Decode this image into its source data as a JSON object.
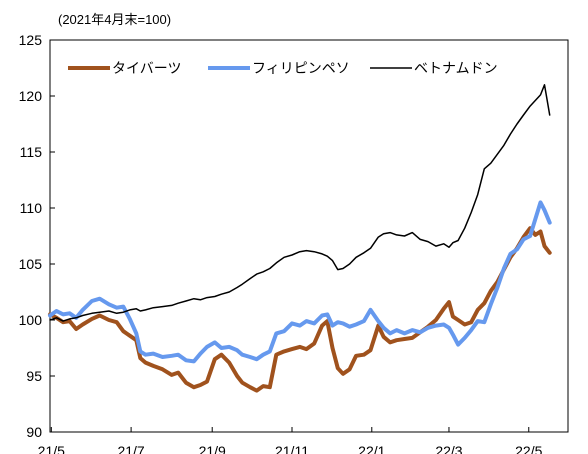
{
  "chart_data": {
    "type": "line",
    "note": "(2021年4月末=100)",
    "ylim": [
      90,
      125
    ],
    "yticks": [
      90,
      95,
      100,
      105,
      110,
      115,
      120,
      125
    ],
    "xticks": [
      "21/5",
      "21/7",
      "21/9",
      "21/11",
      "22/1",
      "22/3",
      "22/5"
    ],
    "x_start": "2021-04-30",
    "x_end": "2022-05-31",
    "legend_position": "top",
    "grid": false,
    "series": [
      {
        "name": "タイバーツ",
        "color": "#a0521d",
        "width": 4,
        "points": [
          [
            "2021-04-30",
            100.5
          ],
          [
            "2021-05-05",
            100.2
          ],
          [
            "2021-05-10",
            99.8
          ],
          [
            "2021-05-15",
            99.9
          ],
          [
            "2021-05-20",
            99.2
          ],
          [
            "2021-05-25",
            99.6
          ],
          [
            "2021-06-01",
            100.1
          ],
          [
            "2021-06-07",
            100.4
          ],
          [
            "2021-06-14",
            100.0
          ],
          [
            "2021-06-20",
            99.8
          ],
          [
            "2021-06-25",
            99.0
          ],
          [
            "2021-06-30",
            98.6
          ],
          [
            "2021-07-05",
            98.2
          ],
          [
            "2021-07-08",
            96.6
          ],
          [
            "2021-07-12",
            96.2
          ],
          [
            "2021-07-18",
            95.9
          ],
          [
            "2021-07-25",
            95.6
          ],
          [
            "2021-08-01",
            95.1
          ],
          [
            "2021-08-06",
            95.3
          ],
          [
            "2021-08-12",
            94.4
          ],
          [
            "2021-08-18",
            94.0
          ],
          [
            "2021-08-23",
            94.2
          ],
          [
            "2021-08-28",
            94.5
          ],
          [
            "2021-09-03",
            96.5
          ],
          [
            "2021-09-08",
            96.9
          ],
          [
            "2021-09-14",
            96.2
          ],
          [
            "2021-09-20",
            95.0
          ],
          [
            "2021-09-24",
            94.4
          ],
          [
            "2021-09-30",
            94.0
          ],
          [
            "2021-10-05",
            93.7
          ],
          [
            "2021-10-10",
            94.1
          ],
          [
            "2021-10-15",
            94.0
          ],
          [
            "2021-10-20",
            96.9
          ],
          [
            "2021-10-26",
            97.2
          ],
          [
            "2021-11-01",
            97.4
          ],
          [
            "2021-11-07",
            97.6
          ],
          [
            "2021-11-12",
            97.4
          ],
          [
            "2021-11-18",
            97.9
          ],
          [
            "2021-11-24",
            99.5
          ],
          [
            "2021-11-28",
            99.9
          ],
          [
            "2021-12-02",
            97.5
          ],
          [
            "2021-12-06",
            95.7
          ],
          [
            "2021-12-10",
            95.2
          ],
          [
            "2021-12-15",
            95.6
          ],
          [
            "2021-12-20",
            96.8
          ],
          [
            "2021-12-26",
            96.9
          ],
          [
            "2021-12-31",
            97.3
          ],
          [
            "2022-01-06",
            99.5
          ],
          [
            "2022-01-10",
            98.5
          ],
          [
            "2022-01-15",
            98.0
          ],
          [
            "2022-01-20",
            98.2
          ],
          [
            "2022-01-26",
            98.3
          ],
          [
            "2022-02-01",
            98.4
          ],
          [
            "2022-02-07",
            98.9
          ],
          [
            "2022-02-13",
            99.4
          ],
          [
            "2022-02-19",
            100.0
          ],
          [
            "2022-02-25",
            101.0
          ],
          [
            "2022-03-01",
            101.6
          ],
          [
            "2022-03-04",
            100.3
          ],
          [
            "2022-03-08",
            100.0
          ],
          [
            "2022-03-13",
            99.6
          ],
          [
            "2022-03-18",
            99.8
          ],
          [
            "2022-03-23",
            100.9
          ],
          [
            "2022-03-28",
            101.5
          ],
          [
            "2022-04-02",
            102.6
          ],
          [
            "2022-04-07",
            103.4
          ],
          [
            "2022-04-12",
            104.5
          ],
          [
            "2022-04-17",
            105.6
          ],
          [
            "2022-04-22",
            106.4
          ],
          [
            "2022-04-27",
            107.4
          ],
          [
            "2022-05-02",
            108.2
          ],
          [
            "2022-05-06",
            107.6
          ],
          [
            "2022-05-10",
            107.9
          ],
          [
            "2022-05-13",
            106.6
          ],
          [
            "2022-05-17",
            106.0
          ]
        ]
      },
      {
        "name": "フィリピンペソ",
        "color": "#6699ee",
        "width": 4,
        "points": [
          [
            "2021-04-30",
            100.4
          ],
          [
            "2021-05-05",
            100.8
          ],
          [
            "2021-05-10",
            100.5
          ],
          [
            "2021-05-15",
            100.6
          ],
          [
            "2021-05-20",
            100.2
          ],
          [
            "2021-05-25",
            100.9
          ],
          [
            "2021-06-01",
            101.7
          ],
          [
            "2021-06-07",
            101.9
          ],
          [
            "2021-06-14",
            101.4
          ],
          [
            "2021-06-20",
            101.1
          ],
          [
            "2021-06-25",
            101.2
          ],
          [
            "2021-06-30",
            100.1
          ],
          [
            "2021-07-05",
            98.8
          ],
          [
            "2021-07-08",
            97.2
          ],
          [
            "2021-07-12",
            96.9
          ],
          [
            "2021-07-18",
            97.0
          ],
          [
            "2021-07-25",
            96.7
          ],
          [
            "2021-08-01",
            96.8
          ],
          [
            "2021-08-06",
            96.9
          ],
          [
            "2021-08-12",
            96.4
          ],
          [
            "2021-08-18",
            96.3
          ],
          [
            "2021-08-23",
            97.0
          ],
          [
            "2021-08-28",
            97.6
          ],
          [
            "2021-09-03",
            98.0
          ],
          [
            "2021-09-08",
            97.5
          ],
          [
            "2021-09-14",
            97.6
          ],
          [
            "2021-09-20",
            97.3
          ],
          [
            "2021-09-24",
            96.9
          ],
          [
            "2021-09-30",
            96.7
          ],
          [
            "2021-10-05",
            96.5
          ],
          [
            "2021-10-10",
            96.9
          ],
          [
            "2021-10-15",
            97.2
          ],
          [
            "2021-10-20",
            98.8
          ],
          [
            "2021-10-26",
            99.0
          ],
          [
            "2021-11-01",
            99.7
          ],
          [
            "2021-11-07",
            99.5
          ],
          [
            "2021-11-12",
            99.9
          ],
          [
            "2021-11-18",
            99.7
          ],
          [
            "2021-11-24",
            100.4
          ],
          [
            "2021-11-28",
            100.5
          ],
          [
            "2021-12-02",
            99.5
          ],
          [
            "2021-12-06",
            99.8
          ],
          [
            "2021-12-10",
            99.7
          ],
          [
            "2021-12-15",
            99.4
          ],
          [
            "2021-12-20",
            99.6
          ],
          [
            "2021-12-26",
            99.9
          ],
          [
            "2021-12-31",
            100.9
          ],
          [
            "2022-01-06",
            99.9
          ],
          [
            "2022-01-10",
            99.3
          ],
          [
            "2022-01-15",
            98.8
          ],
          [
            "2022-01-20",
            99.1
          ],
          [
            "2022-01-26",
            98.8
          ],
          [
            "2022-02-01",
            99.1
          ],
          [
            "2022-02-07",
            98.9
          ],
          [
            "2022-02-13",
            99.3
          ],
          [
            "2022-02-19",
            99.5
          ],
          [
            "2022-02-25",
            99.6
          ],
          [
            "2022-03-01",
            99.3
          ],
          [
            "2022-03-04",
            98.7
          ],
          [
            "2022-03-08",
            97.8
          ],
          [
            "2022-03-13",
            98.4
          ],
          [
            "2022-03-18",
            99.1
          ],
          [
            "2022-03-23",
            99.9
          ],
          [
            "2022-03-28",
            99.8
          ],
          [
            "2022-04-02",
            101.4
          ],
          [
            "2022-04-07",
            102.9
          ],
          [
            "2022-04-12",
            104.6
          ],
          [
            "2022-04-17",
            105.9
          ],
          [
            "2022-04-22",
            106.3
          ],
          [
            "2022-04-27",
            107.2
          ],
          [
            "2022-05-02",
            107.5
          ],
          [
            "2022-05-06",
            109.0
          ],
          [
            "2022-05-10",
            110.5
          ],
          [
            "2022-05-13",
            109.8
          ],
          [
            "2022-05-17",
            108.7
          ]
        ]
      },
      {
        "name": "ベトナムドン",
        "color": "#000000",
        "width": 1.5,
        "points": [
          [
            "2021-04-30",
            100.0
          ],
          [
            "2021-05-05",
            100.2
          ],
          [
            "2021-05-10",
            99.9
          ],
          [
            "2021-05-15",
            100.1
          ],
          [
            "2021-05-20",
            100.2
          ],
          [
            "2021-05-25",
            100.4
          ],
          [
            "2021-06-01",
            100.6
          ],
          [
            "2021-06-07",
            100.7
          ],
          [
            "2021-06-14",
            100.8
          ],
          [
            "2021-06-20",
            100.6
          ],
          [
            "2021-06-25",
            100.7
          ],
          [
            "2021-06-30",
            100.9
          ],
          [
            "2021-07-05",
            101.0
          ],
          [
            "2021-07-08",
            100.8
          ],
          [
            "2021-07-12",
            100.9
          ],
          [
            "2021-07-18",
            101.1
          ],
          [
            "2021-07-25",
            101.2
          ],
          [
            "2021-08-01",
            101.3
          ],
          [
            "2021-08-06",
            101.5
          ],
          [
            "2021-08-12",
            101.7
          ],
          [
            "2021-08-18",
            101.9
          ],
          [
            "2021-08-23",
            101.8
          ],
          [
            "2021-08-28",
            102.0
          ],
          [
            "2021-09-03",
            102.1
          ],
          [
            "2021-09-08",
            102.3
          ],
          [
            "2021-09-14",
            102.5
          ],
          [
            "2021-09-20",
            102.9
          ],
          [
            "2021-09-24",
            103.2
          ],
          [
            "2021-09-30",
            103.7
          ],
          [
            "2021-10-05",
            104.1
          ],
          [
            "2021-10-10",
            104.3
          ],
          [
            "2021-10-15",
            104.6
          ],
          [
            "2021-10-20",
            105.1
          ],
          [
            "2021-10-26",
            105.6
          ],
          [
            "2021-11-01",
            105.8
          ],
          [
            "2021-11-07",
            106.1
          ],
          [
            "2021-11-12",
            106.2
          ],
          [
            "2021-11-18",
            106.1
          ],
          [
            "2021-11-24",
            105.9
          ],
          [
            "2021-11-28",
            105.7
          ],
          [
            "2021-12-02",
            105.3
          ],
          [
            "2021-12-06",
            104.5
          ],
          [
            "2021-12-10",
            104.6
          ],
          [
            "2021-12-15",
            105.0
          ],
          [
            "2021-12-20",
            105.6
          ],
          [
            "2021-12-26",
            106.0
          ],
          [
            "2021-12-31",
            106.4
          ],
          [
            "2022-01-06",
            107.4
          ],
          [
            "2022-01-10",
            107.7
          ],
          [
            "2022-01-15",
            107.8
          ],
          [
            "2022-01-20",
            107.6
          ],
          [
            "2022-01-26",
            107.5
          ],
          [
            "2022-02-01",
            107.8
          ],
          [
            "2022-02-07",
            107.2
          ],
          [
            "2022-02-13",
            107.0
          ],
          [
            "2022-02-19",
            106.6
          ],
          [
            "2022-02-25",
            106.8
          ],
          [
            "2022-03-01",
            106.5
          ],
          [
            "2022-03-04",
            106.9
          ],
          [
            "2022-03-08",
            107.1
          ],
          [
            "2022-03-13",
            108.2
          ],
          [
            "2022-03-18",
            109.6
          ],
          [
            "2022-03-23",
            111.2
          ],
          [
            "2022-03-28",
            113.5
          ],
          [
            "2022-04-02",
            114.0
          ],
          [
            "2022-04-07",
            114.8
          ],
          [
            "2022-04-12",
            115.6
          ],
          [
            "2022-04-17",
            116.6
          ],
          [
            "2022-04-22",
            117.5
          ],
          [
            "2022-04-27",
            118.3
          ],
          [
            "2022-05-02",
            119.1
          ],
          [
            "2022-05-06",
            119.6
          ],
          [
            "2022-05-10",
            120.1
          ],
          [
            "2022-05-13",
            121.0
          ],
          [
            "2022-05-17",
            118.3
          ]
        ]
      }
    ]
  }
}
